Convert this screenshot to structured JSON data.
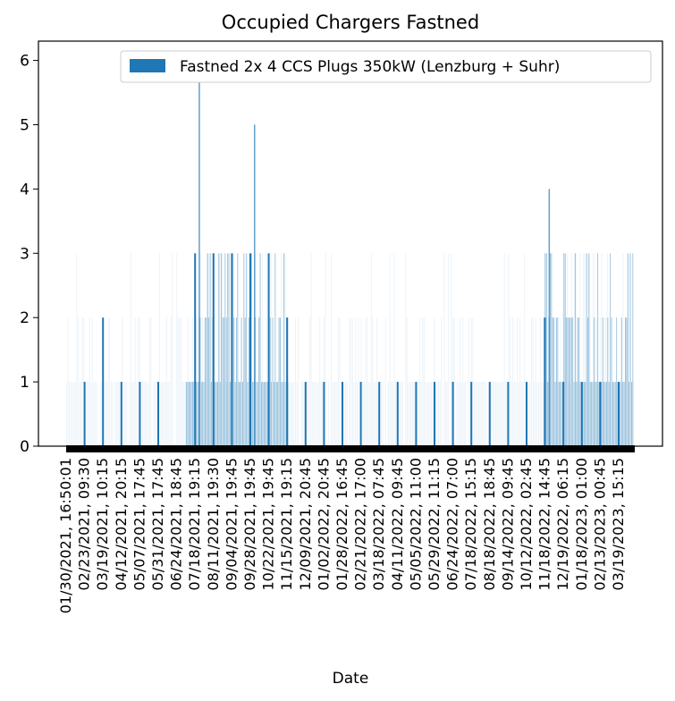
{
  "chart_data": {
    "type": "bar",
    "title": "Occupied Chargers Fastned",
    "xlabel": "Date",
    "ylabel": "",
    "ylim": [
      0,
      6.3
    ],
    "yticks": [
      0,
      1,
      2,
      3,
      4,
      5,
      6
    ],
    "legend": {
      "position": "top-right",
      "label": "Fastned 2x 4 CCS Plugs 350kW (Lenzburg + Suhr)",
      "color": "#1f77b4"
    },
    "categories": [
      "01/30/2021, 16:50:01",
      "02/23/2021, 09:30",
      "03/19/2021, 10:15",
      "04/12/2021, 20:15",
      "05/07/2021, 17:45",
      "05/31/2021, 17:45",
      "06/24/2021, 18:45",
      "07/18/2021, 19:15",
      "08/11/2021, 19:30",
      "09/04/2021, 19:45",
      "09/28/2021, 19:45",
      "10/22/2021, 19:45",
      "11/15/2021, 19:15",
      "12/09/2021, 20:45",
      "01/02/2022, 20:45",
      "01/28/2022, 16:45",
      "02/21/2022, 17:00",
      "03/18/2022, 07:45",
      "04/11/2022, 09:45",
      "05/05/2022, 11:00",
      "05/29/2022, 11:15",
      "06/24/2022, 07:00",
      "07/18/2022, 15:15",
      "08/18/2022, 18:45",
      "09/14/2022, 09:45",
      "10/12/2022, 02:45",
      "11/18/2022, 14:45",
      "12/19/2022, 06:15",
      "01/18/2023, 01:00",
      "02/13/2023, 00:45",
      "03/19/2023, 15:15"
    ],
    "values": [
      0,
      1,
      2,
      1,
      1,
      1,
      0,
      3,
      3,
      3,
      3,
      3,
      2,
      1,
      1,
      1,
      1,
      1,
      1,
      1,
      1,
      1,
      1,
      1,
      1,
      1,
      2,
      1,
      1,
      1,
      1
    ],
    "max_segments": [
      {
        "range": [
          "07/18/2021, 19:15",
          "08/11/2021, 19:30"
        ],
        "peak": 6
      },
      {
        "range": [
          "09/28/2021, 19:45",
          "11/15/2021, 19:15"
        ],
        "peak": 5
      },
      {
        "range": [
          "11/18/2022, 14:45",
          "03/19/2023, 15:15"
        ],
        "peak": 4
      }
    ]
  }
}
